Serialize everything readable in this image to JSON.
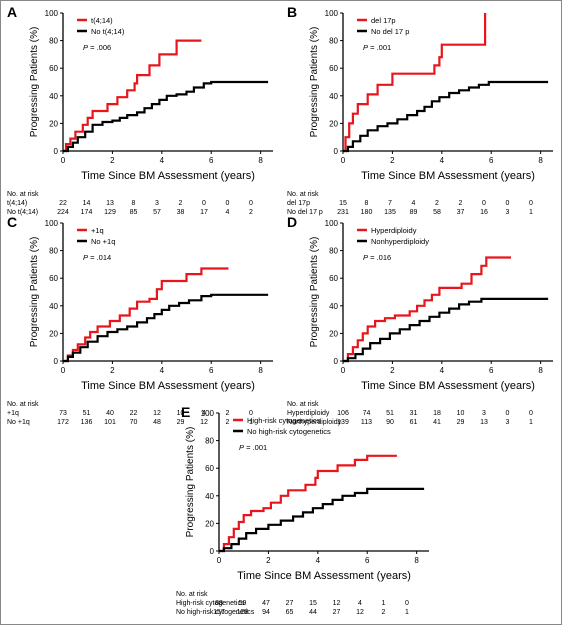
{
  "chart_data": [
    {
      "panel": "A",
      "type": "line",
      "ylabel": "Progressing Patients (%)",
      "xlabel": "Time Since BM Assessment (years)",
      "xlim": [
        0,
        8.5
      ],
      "ylim": [
        0,
        100
      ],
      "xticks": [
        0,
        2,
        4,
        6,
        8
      ],
      "yticks": [
        0,
        20,
        40,
        60,
        80,
        100
      ],
      "p_value_label": "P",
      "p_value_text": " = .006",
      "series": [
        {
          "name": "t(4;14)",
          "color": "#e8161c",
          "points": [
            [
              0,
              0
            ],
            [
              0.12,
              5
            ],
            [
              0.3,
              9
            ],
            [
              0.5,
              14
            ],
            [
              0.8,
              19
            ],
            [
              1.0,
              24
            ],
            [
              1.2,
              29
            ],
            [
              1.8,
              34
            ],
            [
              2.2,
              39
            ],
            [
              2.6,
              44
            ],
            [
              2.9,
              49
            ],
            [
              3.0,
              55
            ],
            [
              3.5,
              62
            ],
            [
              3.9,
              70
            ],
            [
              4.6,
              80
            ],
            [
              5.6,
              80
            ]
          ]
        },
        {
          "name": "No t(4;14)",
          "color": "#000000",
          "points": [
            [
              0,
              0
            ],
            [
              0.2,
              3
            ],
            [
              0.4,
              6
            ],
            [
              0.6,
              10
            ],
            [
              0.9,
              14
            ],
            [
              1.2,
              19
            ],
            [
              1.6,
              21
            ],
            [
              2.0,
              22
            ],
            [
              2.3,
              24
            ],
            [
              2.6,
              26
            ],
            [
              3.0,
              28
            ],
            [
              3.3,
              31
            ],
            [
              3.6,
              34
            ],
            [
              3.9,
              37
            ],
            [
              4.2,
              40
            ],
            [
              4.6,
              41
            ],
            [
              5.0,
              43
            ],
            [
              5.3,
              46
            ],
            [
              5.7,
              49
            ],
            [
              6.0,
              50
            ],
            [
              8.3,
              50
            ]
          ]
        }
      ],
      "risk_table": {
        "title": "No. at risk",
        "x": [
          0,
          1,
          2,
          3,
          4,
          5,
          6,
          7,
          8
        ],
        "rows": [
          {
            "label": "t(4;14)",
            "values": [
              "22",
              "14",
              "13",
              "8",
              "3",
              "2",
              "0",
              "0",
              "0"
            ]
          },
          {
            "label": "No t(4;14)",
            "values": [
              "224",
              "174",
              "129",
              "85",
              "57",
              "38",
              "17",
              "4",
              "2"
            ]
          }
        ]
      }
    },
    {
      "panel": "B",
      "type": "line",
      "ylabel": "Progressing Patients (%)",
      "xlabel": "Time Since BM Assessment (years)",
      "xlim": [
        0,
        8.5
      ],
      "ylim": [
        0,
        100
      ],
      "xticks": [
        0,
        2,
        4,
        6,
        8
      ],
      "yticks": [
        0,
        20,
        40,
        60,
        80,
        100
      ],
      "p_value_label": "P",
      "p_value_text": " = .001",
      "series": [
        {
          "name": "del 17p",
          "color": "#e8161c",
          "points": [
            [
              0,
              0
            ],
            [
              0.1,
              10
            ],
            [
              0.25,
              20
            ],
            [
              0.4,
              27
            ],
            [
              0.6,
              34
            ],
            [
              1.0,
              41
            ],
            [
              1.4,
              48
            ],
            [
              2.0,
              56
            ],
            [
              3.0,
              56
            ],
            [
              3.7,
              62
            ],
            [
              3.9,
              68
            ],
            [
              4.0,
              77
            ],
            [
              5.0,
              77
            ],
            [
              5.7,
              77
            ],
            [
              5.75,
              100
            ]
          ]
        },
        {
          "name": "No del 17 p",
          "color": "#000000",
          "points": [
            [
              0,
              0
            ],
            [
              0.2,
              3
            ],
            [
              0.4,
              7
            ],
            [
              0.7,
              11
            ],
            [
              1.0,
              15
            ],
            [
              1.4,
              18
            ],
            [
              1.8,
              20
            ],
            [
              2.2,
              23
            ],
            [
              2.6,
              26
            ],
            [
              3.0,
              29
            ],
            [
              3.3,
              32
            ],
            [
              3.6,
              36
            ],
            [
              3.9,
              39
            ],
            [
              4.3,
              42
            ],
            [
              4.7,
              44
            ],
            [
              5.1,
              46
            ],
            [
              5.5,
              48
            ],
            [
              5.9,
              50
            ],
            [
              8.3,
              50
            ]
          ]
        }
      ],
      "risk_table": {
        "title": "No. at risk",
        "x": [
          0,
          1,
          2,
          3,
          4,
          5,
          6,
          7,
          8
        ],
        "rows": [
          {
            "label": "del 17p",
            "values": [
              "15",
              "8",
              "7",
              "4",
              "2",
              "2",
              "0",
              "0",
              "0"
            ]
          },
          {
            "label": "No del 17 p",
            "values": [
              "231",
              "180",
              "135",
              "89",
              "58",
              "37",
              "16",
              "3",
              "1"
            ]
          }
        ]
      }
    },
    {
      "panel": "C",
      "type": "line",
      "ylabel": "Progressing Patients (%)",
      "xlabel": "Time Since BM Assessment (years)",
      "xlim": [
        0,
        8.5
      ],
      "ylim": [
        0,
        100
      ],
      "xticks": [
        0,
        2,
        4,
        6,
        8
      ],
      "yticks": [
        0,
        20,
        40,
        60,
        80,
        100
      ],
      "p_value_label": "P",
      "p_value_text": " = .014",
      "series": [
        {
          "name": "+1q",
          "color": "#e8161c",
          "points": [
            [
              0,
              0
            ],
            [
              0.2,
              4
            ],
            [
              0.4,
              8
            ],
            [
              0.6,
              12
            ],
            [
              0.9,
              17
            ],
            [
              1.1,
              21
            ],
            [
              1.4,
              25
            ],
            [
              1.9,
              29
            ],
            [
              2.3,
              33
            ],
            [
              2.7,
              38
            ],
            [
              3.0,
              43
            ],
            [
              3.5,
              45
            ],
            [
              3.8,
              52
            ],
            [
              4.0,
              58
            ],
            [
              5.0,
              63
            ],
            [
              5.6,
              67
            ],
            [
              6.7,
              67
            ]
          ]
        },
        {
          "name": "No +1q",
          "color": "#000000",
          "points": [
            [
              0,
              0
            ],
            [
              0.2,
              3
            ],
            [
              0.4,
              6
            ],
            [
              0.7,
              10
            ],
            [
              1.0,
              14
            ],
            [
              1.4,
              18
            ],
            [
              1.8,
              21
            ],
            [
              2.2,
              23
            ],
            [
              2.6,
              25
            ],
            [
              3.0,
              28
            ],
            [
              3.4,
              31
            ],
            [
              3.7,
              34
            ],
            [
              4.0,
              37
            ],
            [
              4.3,
              40
            ],
            [
              4.7,
              42
            ],
            [
              5.1,
              44
            ],
            [
              5.6,
              47
            ],
            [
              6.0,
              48
            ],
            [
              8.3,
              48
            ]
          ]
        }
      ],
      "risk_table": {
        "title": "No. at risk",
        "x": [
          0,
          1,
          2,
          3,
          4,
          5,
          6,
          7,
          8
        ],
        "rows": [
          {
            "label": "+1q",
            "values": [
              "73",
              "51",
              "40",
              "22",
              "12",
              "10",
              "4",
              "2",
              "0"
            ]
          },
          {
            "label": "No +1q",
            "values": [
              "172",
              "136",
              "101",
              "70",
              "48",
              "29",
              "12",
              "2",
              "1"
            ]
          }
        ]
      }
    },
    {
      "panel": "D",
      "type": "line",
      "ylabel": "Progressing Patients (%)",
      "xlabel": "Time Since BM Assessment (years)",
      "xlim": [
        0,
        8.5
      ],
      "ylim": [
        0,
        100
      ],
      "xticks": [
        0,
        2,
        4,
        6,
        8
      ],
      "yticks": [
        0,
        20,
        40,
        60,
        80,
        100
      ],
      "p_value_label": "P",
      "p_value_text": " = .016",
      "series": [
        {
          "name": "Hyperdiploidy",
          "color": "#e8161c",
          "points": [
            [
              0,
              0
            ],
            [
              0.2,
              5
            ],
            [
              0.4,
              10
            ],
            [
              0.6,
              15
            ],
            [
              0.8,
              20
            ],
            [
              1.0,
              25
            ],
            [
              1.3,
              29
            ],
            [
              1.7,
              31
            ],
            [
              2.1,
              33
            ],
            [
              2.7,
              36
            ],
            [
              3.0,
              40
            ],
            [
              3.3,
              44
            ],
            [
              3.6,
              48
            ],
            [
              3.9,
              53
            ],
            [
              4.8,
              56
            ],
            [
              5.2,
              63
            ],
            [
              5.6,
              69
            ],
            [
              5.8,
              75
            ],
            [
              6.8,
              75
            ]
          ]
        },
        {
          "name": "Nonhyperdiploidy",
          "color": "#000000",
          "points": [
            [
              0,
              0
            ],
            [
              0.2,
              2
            ],
            [
              0.5,
              5
            ],
            [
              0.8,
              9
            ],
            [
              1.1,
              13
            ],
            [
              1.5,
              16
            ],
            [
              1.9,
              20
            ],
            [
              2.3,
              23
            ],
            [
              2.7,
              26
            ],
            [
              3.1,
              29
            ],
            [
              3.5,
              32
            ],
            [
              3.9,
              35
            ],
            [
              4.3,
              38
            ],
            [
              4.7,
              41
            ],
            [
              5.1,
              43
            ],
            [
              5.6,
              45
            ],
            [
              8.3,
              45
            ]
          ]
        }
      ],
      "risk_table": {
        "title": "No. at risk",
        "x": [
          0,
          1,
          2,
          3,
          4,
          5,
          6,
          7,
          8
        ],
        "rows": [
          {
            "label": "Hyperdiploidy",
            "values": [
              "106",
              "74",
              "51",
              "31",
              "18",
              "10",
              "3",
              "0",
              "0"
            ]
          },
          {
            "label": "Nonhyperdiploidy",
            "values": [
              "139",
              "113",
              "90",
              "61",
              "41",
              "29",
              "13",
              "3",
              "1"
            ]
          }
        ]
      }
    },
    {
      "panel": "E",
      "type": "line",
      "ylabel": "Progressing Patients (%)",
      "xlabel": "Time Since BM Assessment (years)",
      "xlim": [
        0,
        8.5
      ],
      "ylim": [
        0,
        100
      ],
      "xticks": [
        0,
        2,
        4,
        6,
        8
      ],
      "yticks": [
        0,
        20,
        40,
        60,
        80,
        100
      ],
      "p_value_label": "P",
      "p_value_text": " = .001",
      "series": [
        {
          "name": "High-risk cytogenetics",
          "color": "#e8161c",
          "points": [
            [
              0,
              0
            ],
            [
              0.2,
              5
            ],
            [
              0.4,
              10
            ],
            [
              0.6,
              16
            ],
            [
              0.8,
              21
            ],
            [
              1.0,
              26
            ],
            [
              1.3,
              29
            ],
            [
              1.8,
              31
            ],
            [
              2.1,
              35
            ],
            [
              2.5,
              40
            ],
            [
              2.8,
              44
            ],
            [
              3.5,
              48
            ],
            [
              3.9,
              53
            ],
            [
              4.0,
              58
            ],
            [
              4.8,
              62
            ],
            [
              5.5,
              66
            ],
            [
              6.0,
              69
            ],
            [
              7.2,
              69
            ]
          ]
        },
        {
          "name": "No high-risk cytogenetics",
          "color": "#000000",
          "points": [
            [
              0,
              0
            ],
            [
              0.2,
              2
            ],
            [
              0.5,
              5
            ],
            [
              0.8,
              9
            ],
            [
              1.1,
              13
            ],
            [
              1.5,
              16
            ],
            [
              2.0,
              19
            ],
            [
              2.5,
              22
            ],
            [
              3.0,
              25
            ],
            [
              3.4,
              28
            ],
            [
              3.8,
              31
            ],
            [
              4.2,
              34
            ],
            [
              4.6,
              37
            ],
            [
              5.0,
              40
            ],
            [
              5.5,
              42
            ],
            [
              6.0,
              45
            ],
            [
              8.3,
              45
            ]
          ]
        }
      ],
      "risk_table": {
        "title": "No. at risk",
        "x": [
          0,
          1,
          2,
          3,
          4,
          5,
          6,
          7,
          8
        ],
        "rows": [
          {
            "label": "High-risk cytogenetics",
            "values": [
              "88",
              "59",
              "47",
              "27",
              "15",
              "12",
              "4",
              "1",
              "0"
            ]
          },
          {
            "label": "No high-risk cytogenetics",
            "values": [
              "157",
              "128",
              "94",
              "65",
              "44",
              "27",
              "12",
              "2",
              "1"
            ]
          }
        ]
      }
    }
  ]
}
